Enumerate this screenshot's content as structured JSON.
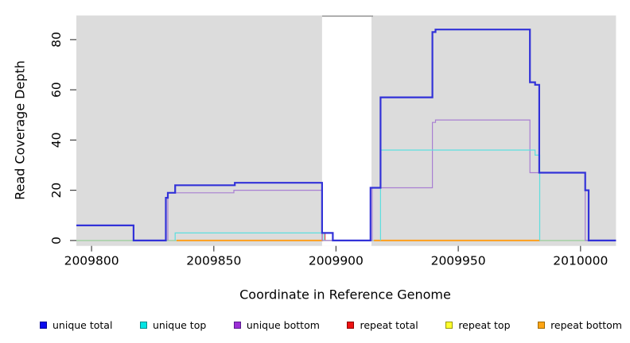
{
  "chart_data": {
    "type": "line",
    "subtype": "step-coverage",
    "title": "",
    "xlabel": "Coordinate in Reference Genome",
    "ylabel": "Read Coverage Depth",
    "xlim": [
      2009793.8,
      2010014.5
    ],
    "ylim": [
      -2.15,
      89.6
    ],
    "x_ticks": [
      2009800,
      2009850,
      2009900,
      2009950,
      2010000
    ],
    "y_ticks": [
      0,
      20,
      40,
      60,
      80
    ],
    "grid": false,
    "plot_background": "#dcdcdc",
    "page_background": "#ffffff",
    "tick_color": "#404040",
    "gap_region": {
      "x0": 2009894.3,
      "x1": 2009914.5,
      "color": "#ffffff",
      "top_border_color": "#999999"
    },
    "series": [
      {
        "name": "repeat top",
        "color": "#9fce9f",
        "width": 1.4,
        "paths": [
          [
            [
              2009793.8,
              2010014.5,
              0
            ]
          ]
        ]
      },
      {
        "name": "repeat total",
        "color": "#e04d4d",
        "width": 1.2,
        "paths": [
          [
            [
              2009894.4,
              2009894.4,
              0
            ],
            [
              2009894.4,
              2009895.5,
              3
            ],
            [
              2009895.5,
              2009895.5,
              0
            ]
          ]
        ]
      },
      {
        "name": "repeat bottom",
        "color": "#ff9f1c",
        "width": 2,
        "paths": [
          [
            [
              2009834.8,
              2009894.7,
              0
            ]
          ],
          [
            [
              2009915.5,
              2009983.3,
              0
            ]
          ]
        ]
      },
      {
        "name": "unique bottom",
        "color": "#a87fd2",
        "width": 1.2,
        "paths": [
          [
            [
              2009831.2,
              2009831.2,
              0
            ],
            [
              2009831.2,
              2009858.2,
              19
            ],
            [
              2009858.2,
              2009894.3,
              20
            ],
            [
              2009894.3,
              2009914.8,
              0
            ],
            [
              2009914.8,
              2009939.4,
              21
            ],
            [
              2009939.4,
              2009940.7,
              47
            ],
            [
              2009940.7,
              2009979.3,
              48
            ],
            [
              2009979.3,
              2010001.9,
              27
            ],
            [
              2010001.9,
              2010014.5,
              0
            ]
          ]
        ]
      },
      {
        "name": "unique top",
        "color": "#5ddede",
        "width": 1.2,
        "paths": [
          [
            [
              2009834.2,
              2009834.2,
              0
            ],
            [
              2009834.2,
              2009895.0,
              3
            ],
            [
              2009895.0,
              2009895.0,
              0
            ]
          ],
          [
            [
              2009918.2,
              2009918.2,
              0
            ],
            [
              2009918.2,
              2009981.4,
              36
            ],
            [
              2009981.4,
              2009983.3,
              34
            ],
            [
              2009983.3,
              2009983.3,
              0
            ]
          ]
        ]
      },
      {
        "name": "unique total",
        "color": "#3232d8",
        "width": 2.2,
        "paths": [
          [
            [
              2009793.8,
              2009817.2,
              6
            ],
            [
              2009817.2,
              2009830.4,
              0
            ],
            [
              2009830.4,
              2009831.2,
              17
            ],
            [
              2009831.2,
              2009834.2,
              19
            ],
            [
              2009834.2,
              2009858.6,
              22
            ],
            [
              2009858.6,
              2009894.3,
              23
            ],
            [
              2009894.3,
              2009898.7,
              3
            ],
            [
              2009898.7,
              2009914.1,
              0
            ],
            [
              2009914.1,
              2009918.2,
              21
            ],
            [
              2009918.2,
              2009939.4,
              57
            ],
            [
              2009939.4,
              2009940.7,
              83
            ],
            [
              2009940.7,
              2009979.3,
              84
            ],
            [
              2009979.3,
              2009981.4,
              63
            ],
            [
              2009981.4,
              2009983.1,
              62
            ],
            [
              2009983.1,
              2010001.9,
              27
            ],
            [
              2010001.9,
              2010003.3,
              20
            ],
            [
              2010003.3,
              2010014.5,
              0
            ]
          ]
        ]
      }
    ]
  },
  "legend": {
    "items": [
      {
        "label": "unique total",
        "fill": "#0a0aee",
        "border": "#00009a"
      },
      {
        "label": "unique top",
        "fill": "#00e5e5",
        "border": "#008b8b"
      },
      {
        "label": "unique bottom",
        "fill": "#9c2fd6",
        "border": "#5a1c8e"
      },
      {
        "label": "repeat total",
        "fill": "#ee1111",
        "border": "#8e0000"
      },
      {
        "label": "repeat top",
        "fill": "#ffff2e",
        "border": "#98980b"
      },
      {
        "label": "repeat bottom",
        "fill": "#ffa514",
        "border": "#a06a00"
      }
    ]
  }
}
